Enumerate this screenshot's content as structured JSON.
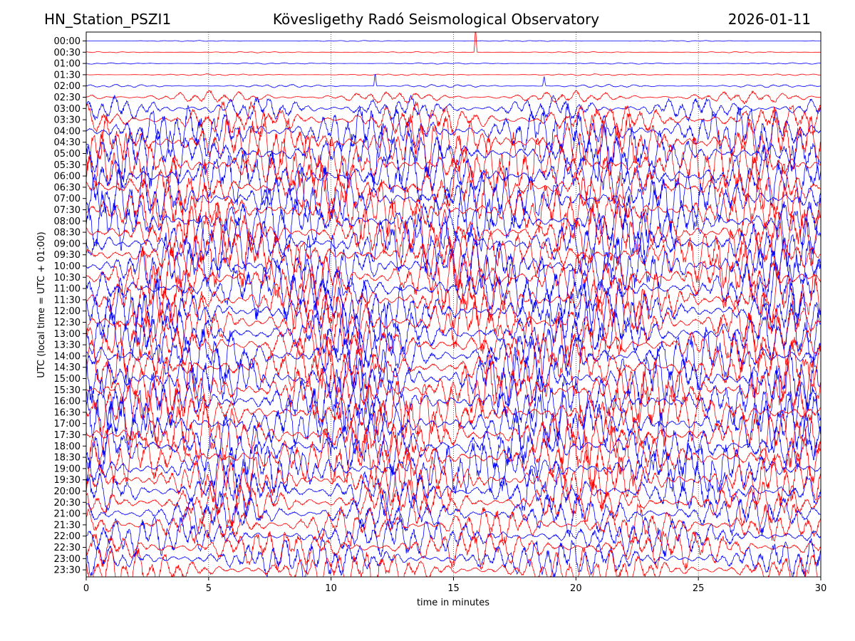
{
  "header": {
    "station": "HN_Station_PSZI1",
    "observatory": "Kövesligethy Radó Seismological Observatory",
    "date": "2026-01-11"
  },
  "chart_data": {
    "type": "line",
    "title": "Kövesligethy Radó Seismological Observatory",
    "xlabel": "time in minutes",
    "ylabel": "UTC (local time = UTC + 01:00)",
    "xlim": [
      0,
      30
    ],
    "x_ticks": [
      "0",
      "5",
      "10",
      "15",
      "20",
      "25",
      "30"
    ],
    "grid": "vertical dotted at every 5 minutes",
    "trace_colors": [
      "#0000ff",
      "#ff0000"
    ],
    "rows": [
      {
        "label": "00:00",
        "amplitude": 0.05
      },
      {
        "label": "00:30",
        "amplitude": 0.06
      },
      {
        "label": "01:00",
        "amplitude": 0.07
      },
      {
        "label": "01:30",
        "amplitude": 0.08
      },
      {
        "label": "02:00",
        "amplitude": 0.15
      },
      {
        "label": "02:30",
        "amplitude": 0.6
      },
      {
        "label": "03:00",
        "amplitude": 1.2
      },
      {
        "label": "03:30",
        "amplitude": 1.8
      },
      {
        "label": "04:00",
        "amplitude": 2.6
      },
      {
        "label": "04:30",
        "amplitude": 3.0
      },
      {
        "label": "05:00",
        "amplitude": 3.0
      },
      {
        "label": "05:30",
        "amplitude": 3.0
      },
      {
        "label": "06:00",
        "amplitude": 3.0
      },
      {
        "label": "06:30",
        "amplitude": 3.0
      },
      {
        "label": "07:00",
        "amplitude": 3.0
      },
      {
        "label": "07:30",
        "amplitude": 3.0
      },
      {
        "label": "08:00",
        "amplitude": 3.0
      },
      {
        "label": "08:30",
        "amplitude": 3.0
      },
      {
        "label": "09:00",
        "amplitude": 3.0
      },
      {
        "label": "09:30",
        "amplitude": 3.0
      },
      {
        "label": "10:00",
        "amplitude": 3.0
      },
      {
        "label": "10:30",
        "amplitude": 3.0
      },
      {
        "label": "11:00",
        "amplitude": 3.0
      },
      {
        "label": "11:30",
        "amplitude": 3.0
      },
      {
        "label": "12:00",
        "amplitude": 3.0
      },
      {
        "label": "12:30",
        "amplitude": 3.0
      },
      {
        "label": "13:00",
        "amplitude": 3.0
      },
      {
        "label": "13:30",
        "amplitude": 3.0
      },
      {
        "label": "14:00",
        "amplitude": 3.0
      },
      {
        "label": "14:30",
        "amplitude": 3.0
      },
      {
        "label": "15:00",
        "amplitude": 3.0
      },
      {
        "label": "15:30",
        "amplitude": 3.0
      },
      {
        "label": "16:00",
        "amplitude": 3.0
      },
      {
        "label": "16:30",
        "amplitude": 3.0
      },
      {
        "label": "17:00",
        "amplitude": 3.0
      },
      {
        "label": "17:30",
        "amplitude": 3.0
      },
      {
        "label": "18:00",
        "amplitude": 3.0
      },
      {
        "label": "18:30",
        "amplitude": 3.0
      },
      {
        "label": "19:00",
        "amplitude": 2.8
      },
      {
        "label": "19:30",
        "amplitude": 2.6
      },
      {
        "label": "20:00",
        "amplitude": 2.4
      },
      {
        "label": "20:30",
        "amplitude": 2.2
      },
      {
        "label": "21:00",
        "amplitude": 2.1
      },
      {
        "label": "21:30",
        "amplitude": 2.0
      },
      {
        "label": "22:00",
        "amplitude": 2.0
      },
      {
        "label": "22:30",
        "amplitude": 2.0
      },
      {
        "label": "23:00",
        "amplitude": 2.0
      },
      {
        "label": "23:30",
        "amplitude": 2.0
      }
    ],
    "spikes": [
      {
        "row": "00:30",
        "minute": 15.9,
        "amplitude": 2.2
      },
      {
        "row": "02:00",
        "minute": 11.8,
        "amplitude": 1.2
      },
      {
        "row": "02:00",
        "minute": 18.7,
        "amplitude": 0.9
      }
    ]
  }
}
